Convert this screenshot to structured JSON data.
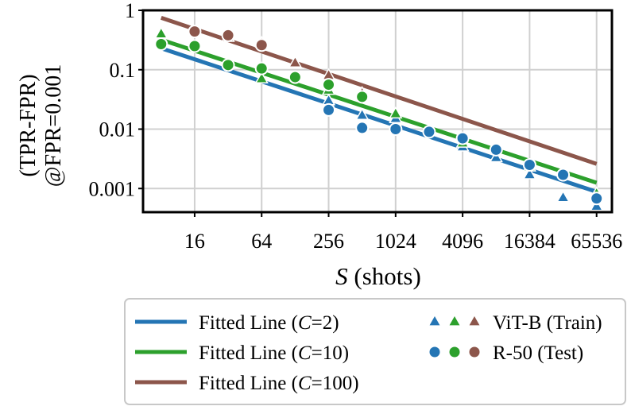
{
  "chart_data": {
    "type": "scatter",
    "title": "",
    "xlabel_var": "S",
    "xlabel_rest": " (shots)",
    "ylabel_line1": "(TPR-FPR)",
    "ylabel_line2": "@FPR=0.001",
    "x_scale": "log2",
    "y_scale": "log10",
    "xlim": [
      5.5,
      90000
    ],
    "ylim": [
      0.0004,
      1.0
    ],
    "x_ticks": [
      16,
      64,
      256,
      1024,
      4096,
      16384,
      65536
    ],
    "x_tick_labels": [
      "16",
      "64",
      "256",
      "1024",
      "4096",
      "16384",
      "65536"
    ],
    "y_ticks": [
      0.001,
      0.01,
      0.1,
      1
    ],
    "y_tick_labels": [
      "0.001",
      "0.01",
      "0.1",
      "1"
    ],
    "grid": true,
    "legend_position": "bottom",
    "colors": {
      "C2": "#2475b4",
      "C10": "#2ca02c",
      "C100": "#8c564b"
    },
    "fitted_lines": [
      {
        "name": "C=2",
        "color": "#2475b4",
        "x": [
          8,
          65536
        ],
        "y": [
          0.23,
          0.00088
        ]
      },
      {
        "name": "C=10",
        "color": "#2ca02c",
        "x": [
          8,
          65536
        ],
        "y": [
          0.32,
          0.00125
        ]
      },
      {
        "name": "C=100",
        "color": "#8c564b",
        "x": [
          8,
          65536
        ],
        "y": [
          0.75,
          0.0026
        ]
      }
    ],
    "series": [
      {
        "marker": "triangle",
        "set": "ViT-B (Train)",
        "color": "#2475b4",
        "points": [
          [
            256,
            0.03
          ],
          [
            512,
            0.017
          ],
          [
            1024,
            0.015
          ],
          [
            4096,
            0.005
          ],
          [
            8192,
            0.0033
          ],
          [
            16384,
            0.0017
          ],
          [
            32768,
            0.0007
          ],
          [
            65536,
            0.0005
          ]
        ]
      },
      {
        "marker": "triangle",
        "set": "ViT-B (Train)",
        "color": "#2ca02c",
        "points": [
          [
            8,
            0.4
          ],
          [
            64,
            0.07
          ],
          [
            256,
            0.045
          ],
          [
            1024,
            0.018
          ],
          [
            4096,
            0.0058
          ],
          [
            16384,
            0.0023
          ],
          [
            65536,
            0.00082
          ]
        ]
      },
      {
        "marker": "triangle",
        "set": "ViT-B (Train)",
        "color": "#8c564b",
        "points": [
          [
            16,
            0.42
          ],
          [
            32,
            0.35
          ],
          [
            64,
            0.28
          ],
          [
            128,
            0.13
          ],
          [
            256,
            0.08
          ],
          [
            512,
            0.04
          ]
        ]
      },
      {
        "marker": "circle",
        "set": "R-50 (Test)",
        "color": "#2475b4",
        "points": [
          [
            256,
            0.021
          ],
          [
            512,
            0.0105
          ],
          [
            1024,
            0.01
          ],
          [
            2048,
            0.009
          ],
          [
            4096,
            0.007
          ],
          [
            8192,
            0.0045
          ],
          [
            16384,
            0.0025
          ],
          [
            32768,
            0.0017
          ],
          [
            65536,
            0.00068
          ]
        ]
      },
      {
        "marker": "circle",
        "set": "R-50 (Test)",
        "color": "#2ca02c",
        "points": [
          [
            8,
            0.27
          ],
          [
            16,
            0.25
          ],
          [
            32,
            0.12
          ],
          [
            64,
            0.105
          ],
          [
            128,
            0.075
          ],
          [
            256,
            0.056
          ],
          [
            512,
            0.035
          ]
        ]
      },
      {
        "marker": "circle",
        "set": "R-50 (Test)",
        "color": "#8c564b",
        "points": [
          [
            16,
            0.44
          ],
          [
            32,
            0.38
          ],
          [
            64,
            0.26
          ]
        ]
      }
    ],
    "legend": {
      "lines": [
        {
          "pre": "Fitted Line (",
          "var": "C",
          "post": "=2)",
          "color": "#2475b4"
        },
        {
          "pre": "Fitted Line (",
          "var": "C",
          "post": "=10)",
          "color": "#2ca02c"
        },
        {
          "pre": "Fitted Line (",
          "var": "C",
          "post": "=100)",
          "color": "#8c564b"
        }
      ],
      "markers": [
        {
          "label": "ViT-B (Train)",
          "marker": "triangle",
          "colors": [
            "#2475b4",
            "#2ca02c",
            "#8c564b"
          ]
        },
        {
          "label": "R-50 (Test)",
          "marker": "circle",
          "colors": [
            "#2475b4",
            "#2ca02c",
            "#8c564b"
          ]
        }
      ]
    }
  }
}
